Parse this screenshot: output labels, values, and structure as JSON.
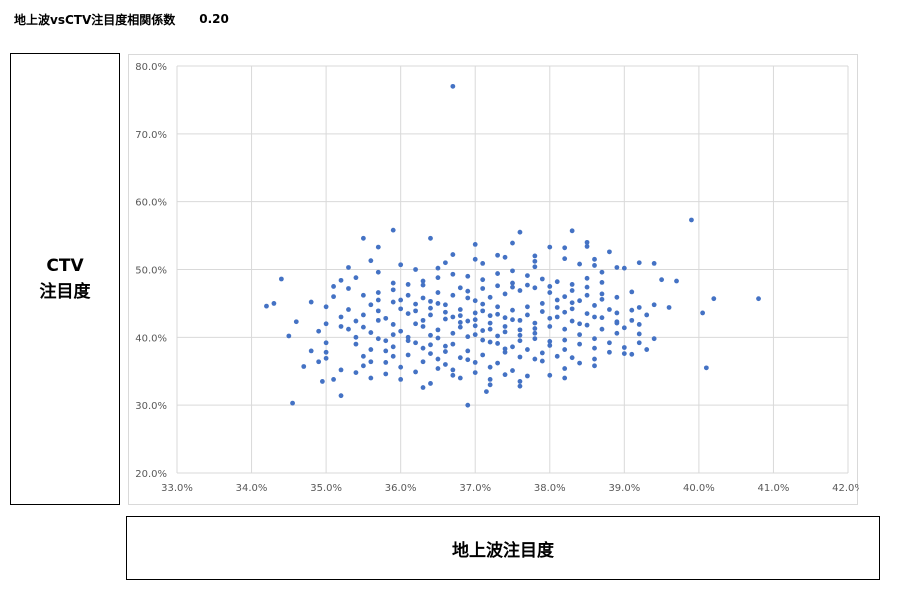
{
  "header": {
    "title": "地上波vsCTV注目度相関係数",
    "correlation": "0.20"
  },
  "y_axis_title": {
    "line1": "CTV",
    "line2": "注目度"
  },
  "x_axis_title": "地上波注目度",
  "colors": {
    "point": "#4472c4",
    "grid": "#d9d9d9",
    "tick_text": "#595959"
  },
  "chart_data": {
    "type": "scatter",
    "title": "",
    "xlabel": "地上波注目度",
    "ylabel": "CTV注目度",
    "xlim": [
      33.0,
      42.0
    ],
    "ylim": [
      20.0,
      80.0
    ],
    "x_ticks": [
      "33.0%",
      "34.0%",
      "35.0%",
      "36.0%",
      "37.0%",
      "38.0%",
      "39.0%",
      "40.0%",
      "41.0%",
      "42.0%"
    ],
    "y_ticks": [
      "20.0%",
      "30.0%",
      "40.0%",
      "50.0%",
      "60.0%",
      "70.0%",
      "80.0%"
    ],
    "grid": true,
    "legend": "none",
    "points": [
      [
        36.7,
        77.0
      ],
      [
        39.9,
        57.3
      ],
      [
        38.3,
        55.7
      ],
      [
        35.9,
        55.8
      ],
      [
        37.6,
        55.5
      ],
      [
        35.5,
        54.6
      ],
      [
        36.4,
        54.6
      ],
      [
        38.5,
        54.0
      ],
      [
        37.0,
        53.7
      ],
      [
        37.5,
        53.9
      ],
      [
        38.5,
        53.4
      ],
      [
        38.0,
        53.3
      ],
      [
        38.2,
        53.2
      ],
      [
        38.8,
        52.6
      ],
      [
        37.8,
        52.0
      ],
      [
        35.7,
        53.3
      ],
      [
        35.6,
        51.3
      ],
      [
        36.7,
        52.2
      ],
      [
        37.3,
        52.1
      ],
      [
        38.6,
        51.5
      ],
      [
        39.2,
        51.0
      ],
      [
        39.4,
        50.9
      ],
      [
        39.0,
        50.2
      ],
      [
        38.4,
        50.8
      ],
      [
        37.8,
        50.4
      ],
      [
        37.1,
        50.9
      ],
      [
        36.5,
        50.2
      ],
      [
        36.0,
        50.7
      ],
      [
        35.3,
        50.3
      ],
      [
        34.4,
        48.6
      ],
      [
        35.2,
        48.4
      ],
      [
        35.1,
        47.5
      ],
      [
        35.9,
        48.0
      ],
      [
        36.3,
        47.7
      ],
      [
        36.8,
        47.3
      ],
      [
        37.5,
        48.0
      ],
      [
        38.0,
        47.5
      ],
      [
        38.7,
        48.1
      ],
      [
        39.5,
        48.5
      ],
      [
        39.7,
        48.3
      ],
      [
        40.2,
        45.7
      ],
      [
        40.8,
        45.7
      ],
      [
        40.05,
        43.6
      ],
      [
        40.1,
        35.5
      ],
      [
        34.2,
        44.6
      ],
      [
        34.3,
        45.0
      ],
      [
        34.6,
        42.3
      ],
      [
        34.5,
        40.2
      ],
      [
        34.8,
        45.2
      ],
      [
        34.8,
        38.0
      ],
      [
        35.0,
        42.0
      ],
      [
        35.0,
        37.8
      ],
      [
        35.2,
        41.6
      ],
      [
        35.2,
        31.4
      ],
      [
        34.55,
        30.3
      ],
      [
        34.95,
        33.5
      ],
      [
        35.1,
        33.8
      ],
      [
        34.9,
        36.4
      ],
      [
        35.0,
        39.2
      ],
      [
        35.5,
        35.8
      ],
      [
        36.3,
        32.6
      ],
      [
        36.9,
        30.0
      ],
      [
        37.15,
        32.0
      ],
      [
        37.2,
        33.0
      ],
      [
        37.6,
        32.8
      ],
      [
        38.2,
        35.4
      ],
      [
        38.6,
        35.8
      ],
      [
        39.0,
        37.6
      ],
      [
        39.3,
        38.2
      ],
      [
        39.6,
        44.4
      ],
      [
        39.2,
        44.4
      ],
      [
        39.4,
        44.8
      ],
      [
        39.1,
        42.5
      ],
      [
        38.9,
        42.1
      ],
      [
        39.2,
        40.5
      ],
      [
        36.1,
        46.2
      ],
      [
        36.4,
        45.3
      ],
      [
        36.6,
        44.8
      ],
      [
        36.8,
        44.1
      ],
      [
        37.0,
        43.6
      ],
      [
        37.2,
        43.2
      ],
      [
        37.4,
        42.9
      ],
      [
        37.6,
        42.5
      ],
      [
        37.8,
        42.1
      ],
      [
        38.0,
        41.6
      ],
      [
        38.2,
        41.2
      ],
      [
        36.2,
        43.9
      ],
      [
        36.4,
        43.3
      ],
      [
        36.6,
        42.7
      ],
      [
        36.8,
        42.2
      ],
      [
        37.0,
        41.7
      ],
      [
        37.2,
        41.2
      ],
      [
        37.4,
        40.8
      ],
      [
        37.6,
        40.3
      ],
      [
        37.8,
        39.8
      ],
      [
        38.0,
        39.4
      ],
      [
        35.8,
        42.8
      ],
      [
        35.9,
        41.9
      ],
      [
        36.0,
        40.9
      ],
      [
        36.1,
        40.0
      ],
      [
        36.2,
        39.2
      ],
      [
        36.3,
        38.4
      ],
      [
        36.4,
        37.6
      ],
      [
        36.5,
        36.8
      ],
      [
        36.6,
        36.0
      ],
      [
        36.7,
        35.2
      ],
      [
        37.0,
        45.4
      ],
      [
        37.2,
        45.9
      ],
      [
        37.4,
        46.4
      ],
      [
        37.6,
        46.9
      ],
      [
        37.8,
        47.3
      ],
      [
        38.0,
        46.6
      ],
      [
        38.2,
        46.0
      ],
      [
        38.4,
        45.4
      ],
      [
        38.6,
        44.7
      ],
      [
        38.8,
        44.1
      ],
      [
        35.6,
        44.8
      ],
      [
        35.7,
        43.9
      ],
      [
        35.8,
        39.5
      ],
      [
        35.9,
        38.6
      ],
      [
        35.4,
        42.4
      ],
      [
        35.5,
        41.5
      ],
      [
        35.6,
        40.7
      ],
      [
        35.7,
        39.8
      ],
      [
        35.8,
        38.0
      ],
      [
        35.9,
        37.2
      ],
      [
        36.9,
        46.8
      ],
      [
        37.1,
        47.2
      ],
      [
        37.3,
        47.6
      ],
      [
        37.5,
        47.4
      ],
      [
        37.7,
        47.7
      ],
      [
        36.5,
        46.6
      ],
      [
        36.7,
        46.2
      ],
      [
        36.9,
        45.8
      ],
      [
        37.1,
        44.9
      ],
      [
        37.3,
        44.5
      ],
      [
        36.3,
        41.6
      ],
      [
        36.5,
        41.1
      ],
      [
        36.7,
        40.6
      ],
      [
        36.9,
        40.1
      ],
      [
        37.1,
        39.6
      ],
      [
        37.3,
        39.1
      ],
      [
        37.5,
        38.6
      ],
      [
        37.7,
        38.2
      ],
      [
        37.9,
        37.7
      ],
      [
        38.1,
        37.2
      ],
      [
        36.0,
        45.5
      ],
      [
        36.2,
        44.9
      ],
      [
        36.4,
        44.3
      ],
      [
        36.6,
        43.7
      ],
      [
        36.8,
        43.2
      ],
      [
        37.0,
        42.6
      ],
      [
        37.2,
        42.1
      ],
      [
        37.4,
        41.6
      ],
      [
        37.6,
        41.1
      ],
      [
        37.8,
        40.6
      ],
      [
        38.3,
        44.2
      ],
      [
        38.5,
        43.5
      ],
      [
        38.7,
        42.9
      ],
      [
        38.9,
        42.3
      ],
      [
        38.1,
        43.0
      ],
      [
        38.3,
        42.4
      ],
      [
        38.5,
        41.8
      ],
      [
        38.7,
        41.2
      ],
      [
        38.9,
        40.6
      ],
      [
        38.2,
        39.6
      ],
      [
        38.4,
        39.0
      ],
      [
        38.6,
        38.4
      ],
      [
        38.8,
        37.8
      ],
      [
        38.3,
        37.0
      ],
      [
        36.1,
        37.4
      ],
      [
        36.3,
        36.4
      ],
      [
        36.5,
        35.4
      ],
      [
        36.7,
        34.4
      ],
      [
        36.9,
        36.7
      ],
      [
        37.1,
        37.4
      ],
      [
        37.3,
        36.2
      ],
      [
        37.5,
        35.1
      ],
      [
        37.7,
        34.3
      ],
      [
        37.9,
        36.5
      ],
      [
        35.5,
        46.2
      ],
      [
        35.7,
        46.6
      ],
      [
        35.9,
        45.2
      ],
      [
        36.1,
        43.5
      ],
      [
        36.3,
        42.5
      ],
      [
        36.5,
        39.9
      ],
      [
        36.7,
        39.0
      ],
      [
        36.9,
        38.0
      ],
      [
        37.1,
        41.0
      ],
      [
        37.3,
        40.2
      ],
      [
        37.5,
        44.0
      ],
      [
        37.7,
        44.5
      ],
      [
        37.9,
        45.0
      ],
      [
        38.1,
        45.5
      ],
      [
        38.3,
        46.9
      ],
      [
        38.5,
        47.4
      ],
      [
        38.7,
        46.4
      ],
      [
        38.9,
        45.9
      ],
      [
        39.1,
        46.7
      ],
      [
        39.3,
        43.3
      ],
      [
        35.4,
        39.0
      ],
      [
        35.6,
        38.2
      ],
      [
        35.8,
        36.3
      ],
      [
        36.0,
        35.6
      ],
      [
        36.2,
        34.9
      ],
      [
        36.4,
        38.9
      ],
      [
        36.6,
        37.9
      ],
      [
        36.8,
        37.0
      ],
      [
        37.0,
        36.3
      ],
      [
        37.2,
        35.6
      ],
      [
        37.4,
        37.8
      ],
      [
        37.6,
        37.1
      ],
      [
        37.8,
        36.8
      ],
      [
        38.0,
        38.8
      ],
      [
        38.2,
        38.2
      ],
      [
        38.4,
        40.4
      ],
      [
        38.6,
        39.8
      ],
      [
        38.8,
        39.2
      ],
      [
        39.0,
        41.4
      ],
      [
        39.2,
        41.9
      ],
      [
        35.3,
        44.1
      ],
      [
        35.5,
        43.3
      ],
      [
        35.7,
        42.5
      ],
      [
        35.9,
        40.4
      ],
      [
        36.1,
        39.5
      ],
      [
        36.3,
        45.8
      ],
      [
        36.5,
        45.0
      ],
      [
        36.7,
        43.0
      ],
      [
        36.9,
        42.4
      ],
      [
        37.1,
        43.9
      ],
      [
        37.3,
        43.4
      ],
      [
        37.5,
        42.6
      ],
      [
        37.7,
        43.3
      ],
      [
        37.9,
        43.8
      ],
      [
        38.1,
        44.4
      ],
      [
        38.3,
        45.1
      ],
      [
        38.5,
        46.2
      ],
      [
        38.7,
        45.6
      ],
      [
        38.9,
        43.6
      ],
      [
        39.1,
        44.0
      ],
      [
        35.9,
        47.0
      ],
      [
        36.1,
        47.8
      ],
      [
        36.3,
        48.3
      ],
      [
        36.5,
        48.8
      ],
      [
        36.7,
        49.3
      ],
      [
        36.9,
        49.0
      ],
      [
        37.1,
        48.5
      ],
      [
        37.3,
        49.4
      ],
      [
        37.5,
        49.8
      ],
      [
        37.7,
        49.1
      ],
      [
        37.9,
        48.6
      ],
      [
        38.1,
        48.2
      ],
      [
        38.3,
        47.8
      ],
      [
        38.5,
        48.7
      ],
      [
        38.7,
        49.6
      ],
      [
        35.7,
        45.5
      ],
      [
        36.0,
        44.2
      ],
      [
        36.2,
        42.0
      ],
      [
        36.4,
        40.3
      ],
      [
        36.6,
        38.7
      ],
      [
        36.8,
        41.5
      ],
      [
        37.0,
        40.4
      ],
      [
        37.2,
        39.3
      ],
      [
        37.4,
        38.3
      ],
      [
        37.6,
        39.5
      ],
      [
        37.8,
        41.3
      ],
      [
        38.0,
        42.8
      ],
      [
        38.2,
        43.7
      ],
      [
        38.4,
        42.0
      ],
      [
        38.6,
        43.0
      ],
      [
        35.0,
        44.5
      ],
      [
        35.2,
        43.0
      ],
      [
        35.3,
        41.2
      ],
      [
        35.4,
        40.0
      ],
      [
        35.5,
        37.2
      ],
      [
        35.6,
        36.4
      ],
      [
        35.8,
        34.6
      ],
      [
        35.6,
        34.0
      ],
      [
        35.4,
        34.8
      ],
      [
        36.0,
        33.8
      ],
      [
        36.4,
        33.2
      ],
      [
        36.8,
        34.0
      ],
      [
        37.0,
        34.8
      ],
      [
        37.2,
        33.8
      ],
      [
        37.4,
        34.5
      ],
      [
        37.6,
        33.5
      ],
      [
        38.0,
        34.4
      ],
      [
        38.2,
        34.0
      ],
      [
        38.4,
        36.2
      ],
      [
        38.6,
        36.8
      ],
      [
        39.0,
        38.5
      ],
      [
        39.1,
        37.5
      ],
      [
        39.2,
        39.2
      ],
      [
        39.4,
        39.8
      ],
      [
        36.2,
        50.0
      ],
      [
        36.6,
        51.0
      ],
      [
        37.0,
        51.5
      ],
      [
        37.4,
        51.8
      ],
      [
        37.8,
        51.2
      ],
      [
        38.2,
        51.6
      ],
      [
        38.6,
        50.6
      ],
      [
        38.9,
        50.3
      ],
      [
        35.7,
        49.6
      ],
      [
        35.4,
        48.8
      ],
      [
        35.3,
        47.2
      ],
      [
        35.1,
        46.0
      ],
      [
        34.9,
        40.9
      ],
      [
        35.0,
        36.9
      ],
      [
        35.2,
        35.2
      ],
      [
        34.7,
        35.7
      ]
    ]
  }
}
